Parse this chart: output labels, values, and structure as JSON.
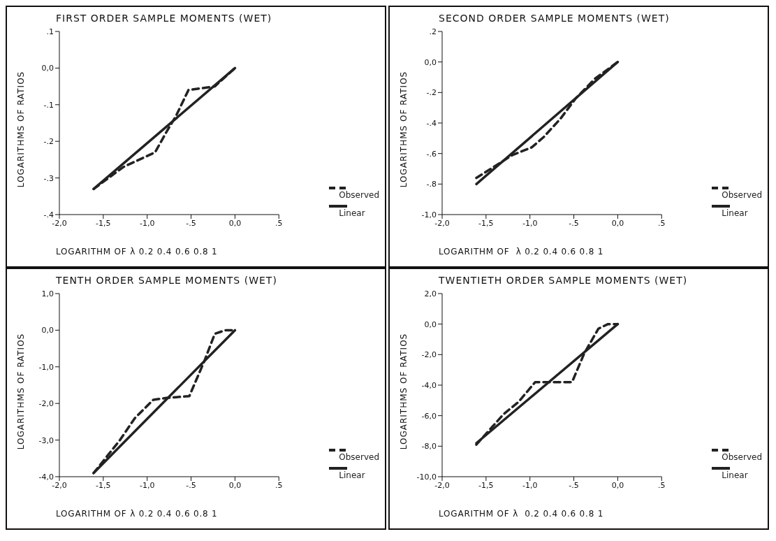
{
  "chart_data": [
    {
      "type": "line",
      "title": "FIRST ORDER SAMPLE MOMENTS (WET)",
      "xlabel": "LOGARITHM OF λ 0.2 0.4 0.6 0.8 1",
      "ylabel": "LOGARITHMS OF RATIOS",
      "xlim": [
        -2,
        0.5
      ],
      "xticks": [
        {
          "value": -2,
          "label": "-2,0"
        },
        {
          "value": -1.5,
          "label": "-1,5"
        },
        {
          "value": -1,
          "label": "-1,0"
        },
        {
          "value": -0.5,
          "label": "-.5"
        },
        {
          "value": 0,
          "label": "0,0"
        },
        {
          "value": 0.5,
          "label": ".5"
        }
      ],
      "ylim": [
        -0.4,
        0.1
      ],
      "yticks": [
        {
          "value": -0.4,
          "label": "-.4"
        },
        {
          "value": -0.3,
          "label": "-.3"
        },
        {
          "value": -0.2,
          "label": "-.2"
        },
        {
          "value": -0.1,
          "label": "-.1"
        },
        {
          "value": 0,
          "label": "0,0"
        },
        {
          "value": 0.1,
          "label": ".1"
        }
      ],
      "legend": "bottom right",
      "grid": false,
      "series": [
        {
          "name": "Observed",
          "color": "#222222",
          "line_style": "dashed",
          "x": [
            -1.61,
            -1.27,
            -0.91,
            -0.77,
            -0.67,
            -0.53,
            -0.23,
            0
          ],
          "values": [
            -0.33,
            -0.27,
            -0.23,
            -0.17,
            -0.13,
            -0.06,
            -0.05,
            0
          ]
        },
        {
          "name": "Linear",
          "color": "#222222",
          "line_style": "solid",
          "x": [
            -1.61,
            0
          ],
          "values": [
            -0.33,
            0
          ]
        }
      ]
    },
    {
      "type": "line",
      "title": "SECOND ORDER SAMPLE MOMENTS (WET)",
      "xlabel": "LOGARITHM OF  λ 0.2 0.4 0.6 0.8 1",
      "ylabel": "LOGARITHMS OF RATIOS",
      "xlim": [
        -2,
        0.5
      ],
      "xticks": [
        {
          "value": -2,
          "label": "-2,0"
        },
        {
          "value": -1.5,
          "label": "-1,5"
        },
        {
          "value": -1,
          "label": "-1,0"
        },
        {
          "value": -0.5,
          "label": "-.5"
        },
        {
          "value": 0,
          "label": "0,0"
        },
        {
          "value": 0.5,
          "label": ".5"
        }
      ],
      "ylim": [
        -1,
        0.2
      ],
      "yticks": [
        {
          "value": -1,
          "label": "-1,0"
        },
        {
          "value": -0.8,
          "label": "-.8"
        },
        {
          "value": -0.6,
          "label": "-.6"
        },
        {
          "value": -0.4,
          "label": "-.4"
        },
        {
          "value": -0.2,
          "label": "-.2"
        },
        {
          "value": 0,
          "label": "0,0"
        },
        {
          "value": 0.2,
          "label": ".2"
        }
      ],
      "legend": "bottom right",
      "grid": false,
      "series": [
        {
          "name": "Observed",
          "color": "#222222",
          "line_style": "dashed",
          "x": [
            -1.61,
            -1.2,
            -0.98,
            -0.84,
            -0.65,
            -0.48,
            -0.26,
            0
          ],
          "values": [
            -0.76,
            -0.61,
            -0.56,
            -0.49,
            -0.37,
            -0.24,
            -0.11,
            0
          ]
        },
        {
          "name": "Linear",
          "color": "#222222",
          "line_style": "solid",
          "x": [
            -1.61,
            0
          ],
          "values": [
            -0.8,
            0
          ]
        }
      ]
    },
    {
      "type": "line",
      "title": "TENTH ORDER SAMPLE MOMENTS (WET)",
      "xlabel": "LOGARITHM OF λ 0.2 0.4 0.6 0.8 1",
      "ylabel": "LOGARITHMS OF RATIOS",
      "xlim": [
        -2,
        0.5
      ],
      "xticks": [
        {
          "value": -2,
          "label": "-2,0"
        },
        {
          "value": -1.5,
          "label": "-1,5"
        },
        {
          "value": -1,
          "label": "-1,0"
        },
        {
          "value": -0.5,
          "label": "-.5"
        },
        {
          "value": 0,
          "label": "0,0"
        },
        {
          "value": 0.5,
          "label": ".5"
        }
      ],
      "ylim": [
        -4,
        1
      ],
      "yticks": [
        {
          "value": -4,
          "label": "-4,0"
        },
        {
          "value": -3,
          "label": "-3,0"
        },
        {
          "value": -2,
          "label": "-2,0"
        },
        {
          "value": -1,
          "label": "-1,0"
        },
        {
          "value": 0,
          "label": "0,0"
        },
        {
          "value": 1,
          "label": "1,0"
        }
      ],
      "legend": "bottom right",
      "grid": false,
      "series": [
        {
          "name": "Observed",
          "color": "#222222",
          "line_style": "dashed",
          "x": [
            -1.61,
            -1.31,
            -1.14,
            -0.93,
            -0.78,
            -0.52,
            -0.35,
            -0.23,
            -0.11,
            0
          ],
          "values": [
            -3.9,
            -3,
            -2.4,
            -1.9,
            -1.85,
            -1.8,
            -0.85,
            -0.1,
            0,
            0
          ]
        },
        {
          "name": "Linear",
          "color": "#222222",
          "line_style": "solid",
          "x": [
            -1.61,
            0
          ],
          "values": [
            -3.9,
            0
          ]
        }
      ]
    },
    {
      "type": "line",
      "title": "TWENTIETH ORDER SAMPLE MOMENTS (WET)",
      "xlabel": "LOGARITHM OF λ  0.2 0.4 0.6 0.8 1",
      "ylabel": "LOGARITHMS OF RATIOS",
      "xlim": [
        -2,
        0.5
      ],
      "xticks": [
        {
          "value": -2,
          "label": "-2,0"
        },
        {
          "value": -1.5,
          "label": "-1,5"
        },
        {
          "value": -1,
          "label": "-1,0"
        },
        {
          "value": -0.5,
          "label": "-.5"
        },
        {
          "value": 0,
          "label": "0,0"
        },
        {
          "value": 0.5,
          "label": ".5"
        }
      ],
      "ylim": [
        -10,
        2
      ],
      "yticks": [
        {
          "value": -10,
          "label": "-10,0"
        },
        {
          "value": -8,
          "label": "-8,0"
        },
        {
          "value": -6,
          "label": "-6,0"
        },
        {
          "value": -4,
          "label": "-4,0"
        },
        {
          "value": -2,
          "label": "-2,0"
        },
        {
          "value": 0,
          "label": "0,0"
        },
        {
          "value": 2,
          "label": "2,0"
        }
      ],
      "legend": "bottom right",
      "grid": false,
      "series": [
        {
          "name": "Observed",
          "color": "#222222",
          "line_style": "dashed",
          "x": [
            -1.61,
            -1.3,
            -1.13,
            -0.94,
            -0.52,
            -0.38,
            -0.22,
            -0.11,
            0
          ],
          "values": [
            -7.9,
            -5.9,
            -5.1,
            -3.8,
            -3.8,
            -1.9,
            -0.3,
            0,
            0
          ]
        },
        {
          "name": "Linear",
          "color": "#222222",
          "line_style": "solid",
          "x": [
            -1.61,
            0
          ],
          "values": [
            -7.8,
            0
          ]
        }
      ]
    }
  ]
}
